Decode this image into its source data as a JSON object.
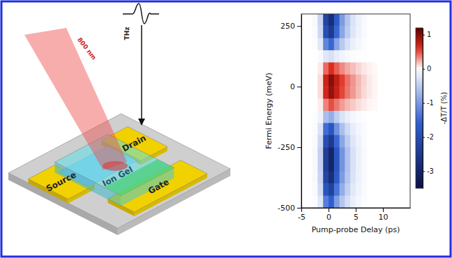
{
  "chart_data": {
    "type": "heatmap",
    "x_label": "Pump-probe Delay (ps)",
    "y_label": "Fermi Energy (meV)",
    "xlim": [
      -5,
      15
    ],
    "ylim": [
      -500,
      300
    ],
    "xticks": [
      -5,
      0,
      5,
      10
    ],
    "yticks": [
      -500,
      -250,
      0,
      250
    ],
    "x_bins": [
      -5,
      -4,
      -3,
      -2,
      -1,
      0,
      1,
      2,
      3,
      4,
      5,
      6,
      7,
      8,
      9,
      10,
      11,
      12,
      13,
      14,
      15
    ],
    "y_bins": [
      300,
      250,
      200,
      150,
      100,
      50,
      0,
      -50,
      -100,
      -150,
      -200,
      -250,
      -300,
      -350,
      -400,
      -450,
      -500
    ],
    "cells": [
      [
        0,
        0,
        -0.06,
        -0.42,
        -2.24,
        -2.8,
        -1.68,
        -0.98,
        -0.56,
        -0.28,
        -0.14,
        -0.06,
        0,
        0,
        0,
        0,
        0,
        0,
        0,
        0
      ],
      [
        0,
        0,
        -0.05,
        -0.38,
        -2.0,
        -2.5,
        -1.5,
        -0.88,
        -0.5,
        -0.25,
        -0.13,
        -0.05,
        0,
        0,
        0,
        0,
        0,
        0,
        0,
        0
      ],
      [
        0,
        0,
        -0.03,
        -0.23,
        -1.2,
        -1.5,
        -0.9,
        -0.53,
        -0.3,
        -0.15,
        -0.08,
        -0.03,
        0,
        0,
        0,
        0,
        0,
        0,
        0,
        0
      ],
      [
        0,
        0,
        -0.01,
        -0.05,
        -0.24,
        -0.3,
        -0.18,
        -0.11,
        -0.06,
        -0.03,
        -0.02,
        -0.01,
        0,
        0,
        0,
        0,
        0,
        0,
        0,
        0
      ],
      [
        0,
        0,
        0,
        0.06,
        0.42,
        0.6,
        0.45,
        0.33,
        0.24,
        0.18,
        0.12,
        0.07,
        0.04,
        0.02,
        0,
        0,
        0,
        0,
        0,
        0
      ],
      [
        0,
        0,
        0,
        0.1,
        0.7,
        1.0,
        0.75,
        0.55,
        0.4,
        0.3,
        0.2,
        0.12,
        0.06,
        0.03,
        0,
        0,
        0,
        0,
        0,
        0
      ],
      [
        0,
        0,
        0,
        0.1,
        0.67,
        0.95,
        0.71,
        0.52,
        0.38,
        0.29,
        0.19,
        0.11,
        0.06,
        0.03,
        0,
        0,
        0,
        0,
        0,
        0
      ],
      [
        0,
        0,
        0,
        0.05,
        0.35,
        0.5,
        0.38,
        0.28,
        0.2,
        0.15,
        0.1,
        0.06,
        0.03,
        0.02,
        0,
        0,
        0,
        0,
        0,
        0
      ],
      [
        0,
        0,
        -0.02,
        -0.12,
        -0.64,
        -0.8,
        -0.48,
        -0.28,
        -0.16,
        -0.08,
        -0.04,
        -0.02,
        0,
        0,
        0,
        0,
        0,
        0,
        0,
        0
      ],
      [
        0,
        0,
        -0.04,
        -0.27,
        -1.44,
        -1.8,
        -1.08,
        -0.63,
        -0.36,
        -0.18,
        -0.09,
        -0.04,
        0,
        0,
        0,
        0,
        0,
        0,
        0,
        0
      ],
      [
        0,
        0,
        -0.05,
        -0.38,
        -2.0,
        -2.5,
        -1.5,
        -0.88,
        -0.5,
        -0.25,
        -0.13,
        -0.05,
        0,
        0,
        0,
        0,
        0,
        0,
        0,
        0
      ],
      [
        0,
        0,
        -0.06,
        -0.45,
        -2.4,
        -3.0,
        -1.8,
        -1.05,
        -0.6,
        -0.3,
        -0.15,
        -0.06,
        0,
        0,
        0,
        0,
        0,
        0,
        0,
        0
      ],
      [
        0,
        0,
        -0.06,
        -0.45,
        -2.4,
        -3.0,
        -1.8,
        -1.05,
        -0.6,
        -0.3,
        -0.15,
        -0.06,
        0,
        0,
        0,
        0,
        0,
        0,
        0,
        0
      ],
      [
        0,
        0,
        -0.06,
        -0.42,
        -2.24,
        -2.8,
        -1.68,
        -0.98,
        -0.56,
        -0.28,
        -0.14,
        -0.06,
        0,
        0,
        0,
        0,
        0,
        0,
        0,
        0
      ],
      [
        0,
        0,
        -0.05,
        -0.35,
        -1.84,
        -2.3,
        -1.38,
        -0.81,
        -0.46,
        -0.23,
        -0.12,
        -0.05,
        0,
        0,
        0,
        0,
        0,
        0,
        0,
        0
      ],
      [
        0,
        0,
        -0.03,
        -0.24,
        -1.28,
        -1.6,
        -0.96,
        -0.56,
        -0.32,
        -0.16,
        -0.08,
        -0.03,
        0,
        0,
        0,
        0,
        0,
        0,
        0,
        0
      ]
    ],
    "colorbar": {
      "label": "-ΔT/T (%)",
      "range": [
        -3.5,
        1.2
      ],
      "ticks": [
        1,
        0,
        -1,
        -2,
        -3
      ]
    }
  },
  "diagram": {
    "source": "Source",
    "drain": "Drain",
    "gate": "Gate",
    "ion_gel": "Ion Gel",
    "pump": "800 nm",
    "probe": "THz"
  }
}
